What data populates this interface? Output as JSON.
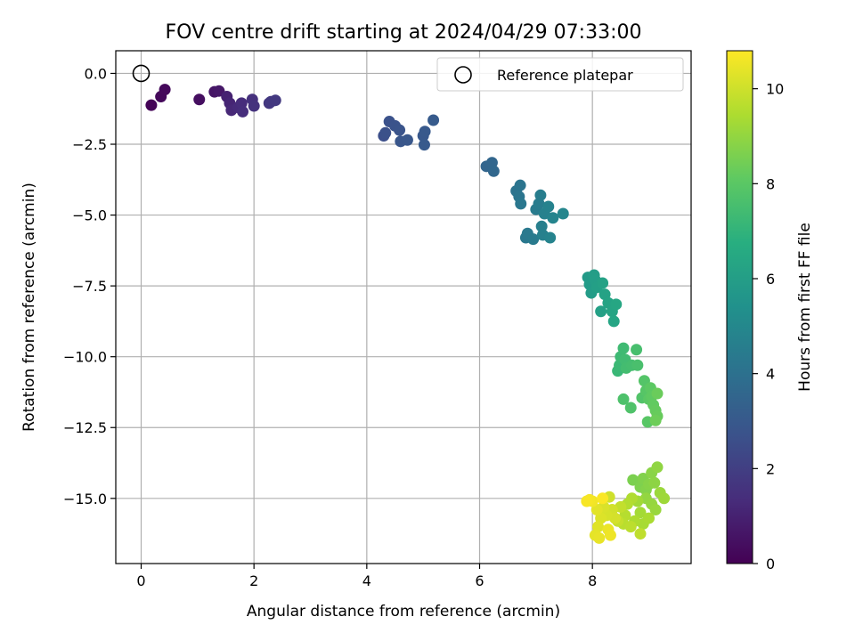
{
  "chart_data": {
    "type": "scatter",
    "title": "FOV centre drift starting at 2024/04/29 07:33:00",
    "xlabel": "Angular distance from reference (arcmin)",
    "ylabel": "Rotation from reference (arcmin)",
    "colorbar_label": "Hours from first FF file",
    "xlim": [
      -0.45,
      9.75
    ],
    "ylim": [
      -17.3,
      0.8
    ],
    "clim": [
      0,
      10.8
    ],
    "xticks": [
      0,
      2,
      4,
      6,
      8
    ],
    "xtick_labels": [
      "0",
      "2",
      "4",
      "6",
      "8"
    ],
    "yticks": [
      0,
      -2.5,
      -5,
      -7.5,
      -10,
      -12.5,
      -15
    ],
    "ytick_labels": [
      "0.0",
      "−2.5",
      "−5.0",
      "−7.5",
      "−10.0",
      "−12.5",
      "−15.0"
    ],
    "cticks": [
      0,
      2,
      4,
      6,
      8,
      10
    ],
    "ctick_labels": [
      "0",
      "2",
      "4",
      "6",
      "8",
      "10"
    ],
    "colormap": "viridis",
    "grid": true,
    "legend": {
      "label": "Reference platepar",
      "placement": "upper right"
    },
    "reference_point": {
      "x": 0,
      "y": 0
    },
    "points": [
      {
        "x": 0.18,
        "y": -1.12,
        "c": 0.1
      },
      {
        "x": 0.35,
        "y": -0.82,
        "c": 0.2
      },
      {
        "x": 0.42,
        "y": -0.57,
        "c": 0.25
      },
      {
        "x": 1.03,
        "y": -0.92,
        "c": 0.4
      },
      {
        "x": 1.3,
        "y": -0.65,
        "c": 0.6
      },
      {
        "x": 1.38,
        "y": -0.62,
        "c": 0.7
      },
      {
        "x": 1.52,
        "y": -0.82,
        "c": 1.0
      },
      {
        "x": 1.57,
        "y": -1.05,
        "c": 1.1
      },
      {
        "x": 1.6,
        "y": -1.3,
        "c": 1.2
      },
      {
        "x": 1.72,
        "y": -1.2,
        "c": 1.3
      },
      {
        "x": 1.78,
        "y": -1.05,
        "c": 1.35
      },
      {
        "x": 1.8,
        "y": -1.35,
        "c": 1.4
      },
      {
        "x": 1.97,
        "y": -0.92,
        "c": 1.5
      },
      {
        "x": 2.0,
        "y": -1.15,
        "c": 1.55
      },
      {
        "x": 2.27,
        "y": -1.05,
        "c": 1.7
      },
      {
        "x": 2.3,
        "y": -1.0,
        "c": 1.75
      },
      {
        "x": 2.38,
        "y": -0.95,
        "c": 1.8
      },
      {
        "x": 4.3,
        "y": -2.2,
        "c": 2.6
      },
      {
        "x": 4.33,
        "y": -2.1,
        "c": 2.65
      },
      {
        "x": 4.4,
        "y": -1.7,
        "c": 2.7
      },
      {
        "x": 4.5,
        "y": -1.85,
        "c": 2.75
      },
      {
        "x": 4.58,
        "y": -2.0,
        "c": 2.8
      },
      {
        "x": 4.6,
        "y": -2.4,
        "c": 2.85
      },
      {
        "x": 4.72,
        "y": -2.35,
        "c": 2.9
      },
      {
        "x": 5.0,
        "y": -2.2,
        "c": 2.95
      },
      {
        "x": 5.03,
        "y": -2.05,
        "c": 3.0
      },
      {
        "x": 5.02,
        "y": -2.52,
        "c": 3.05
      },
      {
        "x": 5.18,
        "y": -1.65,
        "c": 3.1
      },
      {
        "x": 6.12,
        "y": -3.28,
        "c": 3.5
      },
      {
        "x": 6.22,
        "y": -3.15,
        "c": 3.55
      },
      {
        "x": 6.25,
        "y": -3.45,
        "c": 3.6
      },
      {
        "x": 6.65,
        "y": -4.15,
        "c": 4.1
      },
      {
        "x": 6.72,
        "y": -3.95,
        "c": 4.15
      },
      {
        "x": 6.7,
        "y": -4.35,
        "c": 4.2
      },
      {
        "x": 6.73,
        "y": -4.6,
        "c": 4.25
      },
      {
        "x": 6.82,
        "y": -5.8,
        "c": 4.3
      },
      {
        "x": 6.85,
        "y": -5.65,
        "c": 4.35
      },
      {
        "x": 6.95,
        "y": -5.85,
        "c": 4.4
      },
      {
        "x": 7.0,
        "y": -4.8,
        "c": 4.45
      },
      {
        "x": 7.05,
        "y": -4.6,
        "c": 4.5
      },
      {
        "x": 7.08,
        "y": -4.3,
        "c": 4.55
      },
      {
        "x": 7.1,
        "y": -5.4,
        "c": 4.6
      },
      {
        "x": 7.12,
        "y": -5.7,
        "c": 4.65
      },
      {
        "x": 7.15,
        "y": -4.95,
        "c": 4.7
      },
      {
        "x": 7.22,
        "y": -4.7,
        "c": 4.75
      },
      {
        "x": 7.25,
        "y": -5.8,
        "c": 4.8
      },
      {
        "x": 7.3,
        "y": -5.1,
        "c": 4.85
      },
      {
        "x": 7.48,
        "y": -4.95,
        "c": 4.9
      },
      {
        "x": 7.92,
        "y": -7.2,
        "c": 5.8
      },
      {
        "x": 7.95,
        "y": -7.45,
        "c": 5.85
      },
      {
        "x": 7.98,
        "y": -7.75,
        "c": 5.9
      },
      {
        "x": 8.03,
        "y": -7.12,
        "c": 5.95
      },
      {
        "x": 8.05,
        "y": -7.3,
        "c": 6.0
      },
      {
        "x": 8.08,
        "y": -7.55,
        "c": 6.05
      },
      {
        "x": 8.15,
        "y": -8.4,
        "c": 6.1
      },
      {
        "x": 8.18,
        "y": -7.4,
        "c": 6.15
      },
      {
        "x": 8.22,
        "y": -7.8,
        "c": 6.2
      },
      {
        "x": 8.28,
        "y": -8.1,
        "c": 6.25
      },
      {
        "x": 8.35,
        "y": -8.4,
        "c": 6.3
      },
      {
        "x": 8.38,
        "y": -8.75,
        "c": 6.35
      },
      {
        "x": 8.42,
        "y": -8.15,
        "c": 6.4
      },
      {
        "x": 8.45,
        "y": -10.5,
        "c": 7.2
      },
      {
        "x": 8.48,
        "y": -10.3,
        "c": 7.25
      },
      {
        "x": 8.5,
        "y": -10.0,
        "c": 7.3
      },
      {
        "x": 8.55,
        "y": -9.7,
        "c": 7.35
      },
      {
        "x": 8.58,
        "y": -10.1,
        "c": 7.4
      },
      {
        "x": 8.6,
        "y": -10.4,
        "c": 7.45
      },
      {
        "x": 8.7,
        "y": -10.3,
        "c": 7.5
      },
      {
        "x": 8.78,
        "y": -9.75,
        "c": 7.55
      },
      {
        "x": 8.8,
        "y": -10.3,
        "c": 7.6
      },
      {
        "x": 8.55,
        "y": -11.5,
        "c": 7.7
      },
      {
        "x": 8.68,
        "y": -11.8,
        "c": 7.75
      },
      {
        "x": 8.88,
        "y": -11.45,
        "c": 7.8
      },
      {
        "x": 8.92,
        "y": -10.85,
        "c": 7.85
      },
      {
        "x": 8.95,
        "y": -11.2,
        "c": 7.9
      },
      {
        "x": 8.98,
        "y": -12.3,
        "c": 7.95
      },
      {
        "x": 9.0,
        "y": -11.5,
        "c": 8.0
      },
      {
        "x": 9.03,
        "y": -11.1,
        "c": 8.05
      },
      {
        "x": 9.05,
        "y": -11.4,
        "c": 8.1
      },
      {
        "x": 9.08,
        "y": -11.7,
        "c": 8.15
      },
      {
        "x": 9.12,
        "y": -11.9,
        "c": 8.2
      },
      {
        "x": 9.15,
        "y": -12.1,
        "c": 8.25
      },
      {
        "x": 9.15,
        "y": -11.3,
        "c": 8.3
      },
      {
        "x": 9.12,
        "y": -12.25,
        "c": 8.35
      },
      {
        "x": 8.72,
        "y": -14.35,
        "c": 8.6
      },
      {
        "x": 8.85,
        "y": -14.6,
        "c": 8.65
      },
      {
        "x": 8.9,
        "y": -14.3,
        "c": 8.7
      },
      {
        "x": 8.95,
        "y": -14.7,
        "c": 8.75
      },
      {
        "x": 9.0,
        "y": -14.5,
        "c": 8.8
      },
      {
        "x": 9.05,
        "y": -14.1,
        "c": 8.85
      },
      {
        "x": 9.1,
        "y": -14.45,
        "c": 8.9
      },
      {
        "x": 9.15,
        "y": -13.9,
        "c": 8.95
      },
      {
        "x": 8.95,
        "y": -15.0,
        "c": 9.0
      },
      {
        "x": 9.05,
        "y": -15.2,
        "c": 9.05
      },
      {
        "x": 9.12,
        "y": -15.4,
        "c": 9.1
      },
      {
        "x": 9.2,
        "y": -14.8,
        "c": 9.15
      },
      {
        "x": 9.27,
        "y": -15.0,
        "c": 9.2
      },
      {
        "x": 8.8,
        "y": -15.1,
        "c": 9.25
      },
      {
        "x": 8.85,
        "y": -15.5,
        "c": 9.3
      },
      {
        "x": 8.9,
        "y": -15.9,
        "c": 9.35
      },
      {
        "x": 9.0,
        "y": -15.7,
        "c": 9.4
      },
      {
        "x": 8.75,
        "y": -15.8,
        "c": 9.45
      },
      {
        "x": 8.7,
        "y": -15.0,
        "c": 9.5
      },
      {
        "x": 8.62,
        "y": -15.2,
        "c": 9.55
      },
      {
        "x": 8.58,
        "y": -15.6,
        "c": 9.6
      },
      {
        "x": 8.55,
        "y": -15.9,
        "c": 9.65
      },
      {
        "x": 8.68,
        "y": -16.0,
        "c": 9.7
      },
      {
        "x": 8.85,
        "y": -16.25,
        "c": 9.75
      },
      {
        "x": 8.5,
        "y": -15.3,
        "c": 9.8
      },
      {
        "x": 8.45,
        "y": -15.8,
        "c": 9.85
      },
      {
        "x": 8.3,
        "y": -14.95,
        "c": 10.0
      },
      {
        "x": 8.35,
        "y": -15.4,
        "c": 10.05
      },
      {
        "x": 8.4,
        "y": -15.7,
        "c": 10.1
      },
      {
        "x": 8.25,
        "y": -15.6,
        "c": 10.15
      },
      {
        "x": 8.2,
        "y": -15.3,
        "c": 10.2
      },
      {
        "x": 8.15,
        "y": -15.7,
        "c": 10.25
      },
      {
        "x": 8.1,
        "y": -16.0,
        "c": 10.3
      },
      {
        "x": 8.08,
        "y": -15.4,
        "c": 10.35
      },
      {
        "x": 8.05,
        "y": -16.3,
        "c": 10.4
      },
      {
        "x": 8.12,
        "y": -16.4,
        "c": 10.45
      },
      {
        "x": 8.28,
        "y": -16.1,
        "c": 10.5
      },
      {
        "x": 8.32,
        "y": -16.3,
        "c": 10.55
      },
      {
        "x": 8.0,
        "y": -15.1,
        "c": 10.6
      },
      {
        "x": 7.95,
        "y": -15.05,
        "c": 10.65
      },
      {
        "x": 7.9,
        "y": -15.1,
        "c": 10.7
      },
      {
        "x": 8.18,
        "y": -15.0,
        "c": 10.75
      }
    ]
  }
}
